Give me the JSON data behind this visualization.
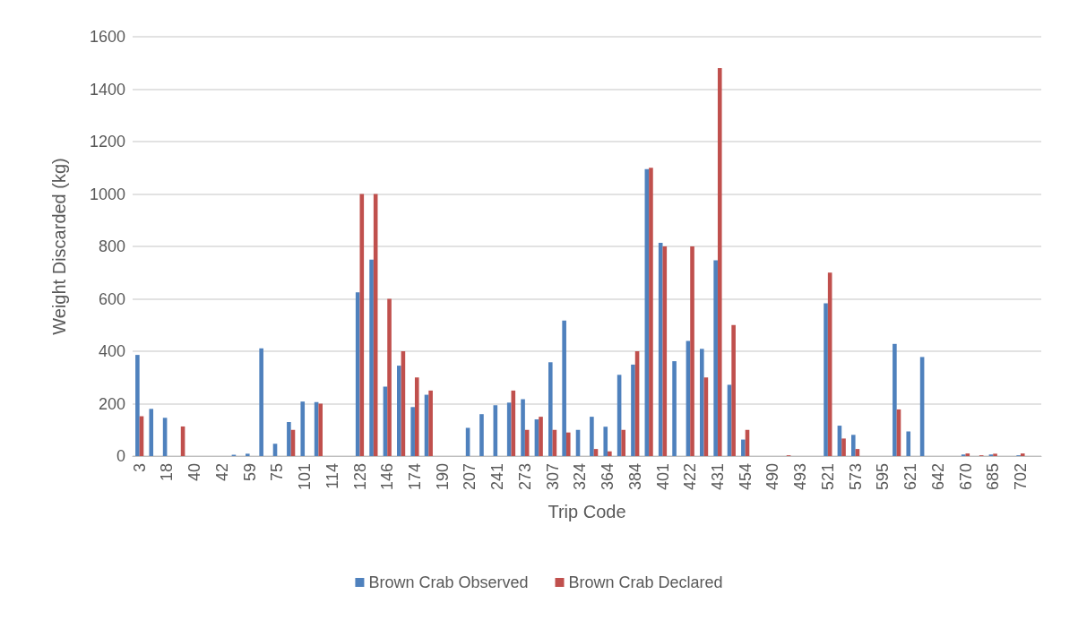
{
  "chart_data": {
    "type": "bar",
    "xlabel": "Trip Code",
    "ylabel": "Weight Discarded (kg)",
    "categories": [
      "3",
      null,
      "18",
      null,
      "40",
      null,
      "42",
      null,
      "59",
      null,
      "75",
      null,
      "101",
      null,
      "114",
      null,
      "128",
      null,
      "146",
      null,
      "174",
      null,
      "190",
      null,
      "207",
      null,
      "241",
      null,
      "273",
      null,
      "307",
      null,
      "324",
      null,
      "364",
      null,
      "384",
      null,
      "401",
      null,
      "422",
      null,
      "431",
      null,
      "454",
      null,
      "490",
      null,
      "493",
      null,
      "521",
      null,
      "573",
      null,
      "595",
      null,
      "621",
      null,
      "642",
      null,
      "670",
      null,
      "685",
      null,
      "702",
      null
    ],
    "series": [
      {
        "name": "Brown Crab Observed",
        "color": "#4f81bd",
        "values": [
          386,
          180,
          146,
          null,
          null,
          null,
          null,
          5,
          9,
          411,
          47,
          130,
          208,
          206,
          null,
          null,
          625,
          750,
          265,
          345,
          187,
          234,
          null,
          null,
          108,
          160,
          194,
          204,
          217,
          140,
          358,
          517,
          100,
          150,
          112,
          310,
          349,
          1095,
          814,
          362,
          439,
          409,
          747,
          272,
          63,
          null,
          null,
          null,
          null,
          null,
          583,
          116,
          81,
          null,
          null,
          428,
          94,
          378,
          null,
          null,
          6,
          null,
          6,
          null,
          3,
          null
        ]
      },
      {
        "name": "Brown Crab Declared",
        "color": "#c0504d",
        "values": [
          152,
          null,
          null,
          113,
          null,
          null,
          null,
          null,
          null,
          null,
          null,
          100,
          null,
          200,
          null,
          null,
          1000,
          1000,
          600,
          400,
          300,
          250,
          null,
          null,
          null,
          null,
          null,
          250,
          100,
          150,
          100,
          90,
          null,
          27,
          18,
          100,
          400,
          1100,
          800,
          null,
          800,
          300,
          1480,
          500,
          100,
          null,
          null,
          3,
          null,
          null,
          700,
          67,
          27,
          null,
          null,
          178,
          null,
          null,
          null,
          null,
          10,
          3,
          9,
          null,
          10,
          null
        ]
      }
    ],
    "ylim": [
      0,
      1600
    ],
    "yticks": [
      0,
      200,
      400,
      600,
      800,
      1000,
      1200,
      1400,
      1600
    ],
    "grid": "y",
    "legend": "bottom"
  }
}
